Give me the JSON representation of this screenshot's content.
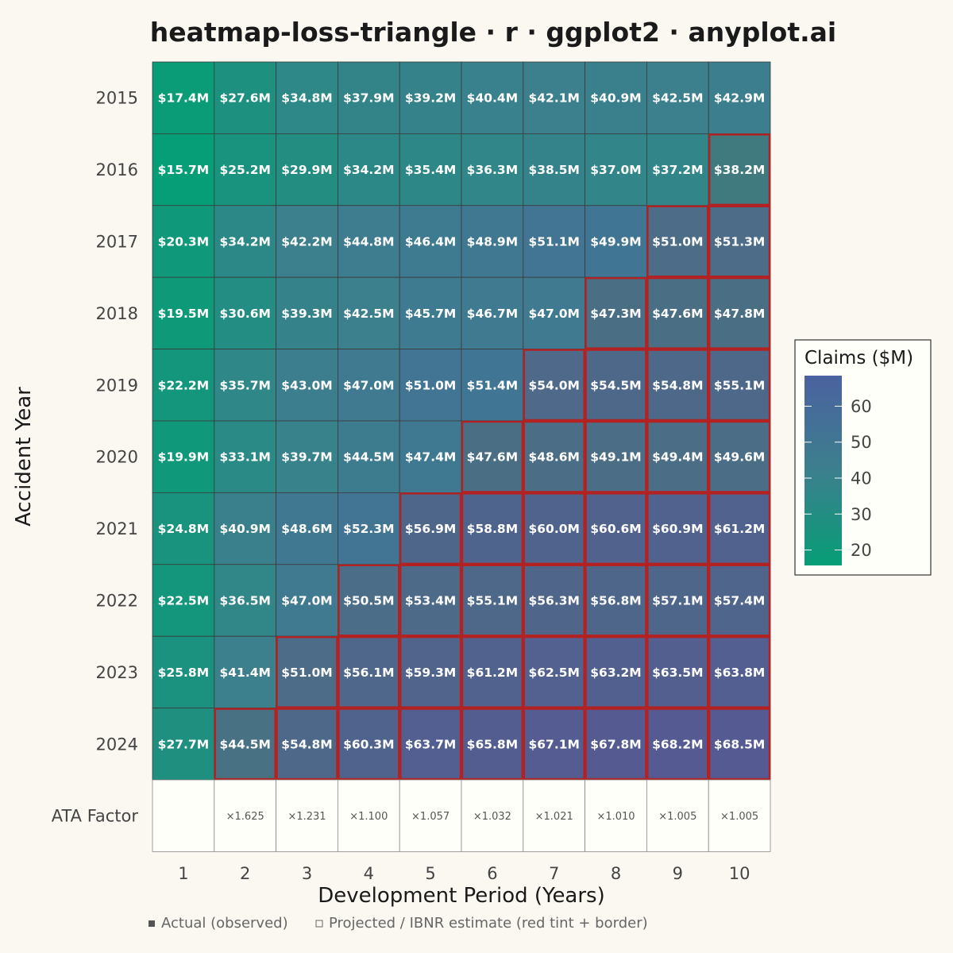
{
  "chart_data": {
    "type": "heatmap",
    "title": "heatmap-loss-triangle · r · ggplot2 · anyplot.ai",
    "xlabel": "Development Period (Years)",
    "ylabel": "Accident Year",
    "x_categories": [
      "1",
      "2",
      "3",
      "4",
      "5",
      "6",
      "7",
      "8",
      "9",
      "10"
    ],
    "y_categories": [
      "2015",
      "2016",
      "2017",
      "2018",
      "2019",
      "2020",
      "2021",
      "2022",
      "2023",
      "2024"
    ],
    "values": [
      [
        17.4,
        27.6,
        34.8,
        37.9,
        39.2,
        40.4,
        42.1,
        40.9,
        42.5,
        42.9
      ],
      [
        15.7,
        25.2,
        29.9,
        34.2,
        35.4,
        36.3,
        38.5,
        37.0,
        37.2,
        38.2
      ],
      [
        20.3,
        34.2,
        42.2,
        44.8,
        46.4,
        48.9,
        51.1,
        49.9,
        51.0,
        51.3
      ],
      [
        19.5,
        30.6,
        39.3,
        42.5,
        45.7,
        46.7,
        47.0,
        47.3,
        47.6,
        47.8
      ],
      [
        22.2,
        35.7,
        43.0,
        47.0,
        51.0,
        51.4,
        54.0,
        54.5,
        54.8,
        55.1
      ],
      [
        19.9,
        33.1,
        39.7,
        44.5,
        47.4,
        47.6,
        48.6,
        49.1,
        49.4,
        49.6
      ],
      [
        24.8,
        40.9,
        48.6,
        52.3,
        56.9,
        58.8,
        60.0,
        60.6,
        60.9,
        61.2
      ],
      [
        22.5,
        36.5,
        47.0,
        50.5,
        53.4,
        55.1,
        56.3,
        56.8,
        57.1,
        57.4
      ],
      [
        25.8,
        41.4,
        51.0,
        56.1,
        59.3,
        61.2,
        62.5,
        63.2,
        63.5,
        63.8
      ],
      [
        27.7,
        44.5,
        54.8,
        60.3,
        63.7,
        65.8,
        67.1,
        67.8,
        68.2,
        68.5
      ]
    ],
    "labels": [
      [
        "$17.4M",
        "$27.6M",
        "$34.8M",
        "$37.9M",
        "$39.2M",
        "$40.4M",
        "$42.1M",
        "$40.9M",
        "$42.5M",
        "$42.9M"
      ],
      [
        "$15.7M",
        "$25.2M",
        "$29.9M",
        "$34.2M",
        "$35.4M",
        "$36.3M",
        "$38.5M",
        "$37.0M",
        "$37.2M",
        "$38.2M"
      ],
      [
        "$20.3M",
        "$34.2M",
        "$42.2M",
        "$44.8M",
        "$46.4M",
        "$48.9M",
        "$51.1M",
        "$49.9M",
        "$51.0M",
        "$51.3M"
      ],
      [
        "$19.5M",
        "$30.6M",
        "$39.3M",
        "$42.5M",
        "$45.7M",
        "$46.7M",
        "$47.0M",
        "$47.3M",
        "$47.6M",
        "$47.8M"
      ],
      [
        "$22.2M",
        "$35.7M",
        "$43.0M",
        "$47.0M",
        "$51.0M",
        "$51.4M",
        "$54.0M",
        "$54.5M",
        "$54.8M",
        "$55.1M"
      ],
      [
        "$19.9M",
        "$33.1M",
        "$39.7M",
        "$44.5M",
        "$47.4M",
        "$47.6M",
        "$48.6M",
        "$49.1M",
        "$49.4M",
        "$49.6M"
      ],
      [
        "$24.8M",
        "$40.9M",
        "$48.6M",
        "$52.3M",
        "$56.9M",
        "$58.8M",
        "$60.0M",
        "$60.6M",
        "$60.9M",
        "$61.2M"
      ],
      [
        "$22.5M",
        "$36.5M",
        "$47.0M",
        "$50.5M",
        "$53.4M",
        "$55.1M",
        "$56.3M",
        "$56.8M",
        "$57.1M",
        "$57.4M"
      ],
      [
        "$25.8M",
        "$41.4M",
        "$51.0M",
        "$56.1M",
        "$59.3M",
        "$61.2M",
        "$62.5M",
        "$63.2M",
        "$63.5M",
        "$63.8M"
      ],
      [
        "$27.7M",
        "$44.5M",
        "$54.8M",
        "$60.3M",
        "$63.7M",
        "$65.8M",
        "$67.1M",
        "$67.8M",
        "$68.2M",
        "$68.5M"
      ]
    ],
    "projected_start_period": [
      null,
      10,
      9,
      8,
      7,
      6,
      5,
      4,
      3,
      2
    ],
    "ata_row_label": "ATA Factor",
    "ata_factors": [
      "",
      "×1.625",
      "×1.231",
      "×1.100",
      "×1.057",
      "×1.032",
      "×1.021",
      "×1.010",
      "×1.005",
      "×1.005"
    ],
    "legend": {
      "title": "Claims ($M)",
      "ticks": [
        20,
        30,
        40,
        50,
        60
      ],
      "range": [
        15.7,
        68.5
      ],
      "color_low": "#069E76",
      "color_mid": "#3C7F8D",
      "color_high": "#4B62A0",
      "placement": "right"
    },
    "projected_border_color": "#B22222",
    "caption": {
      "actual": "Actual (observed)",
      "projected": "Projected / IBNR estimate (red tint + border)"
    }
  }
}
